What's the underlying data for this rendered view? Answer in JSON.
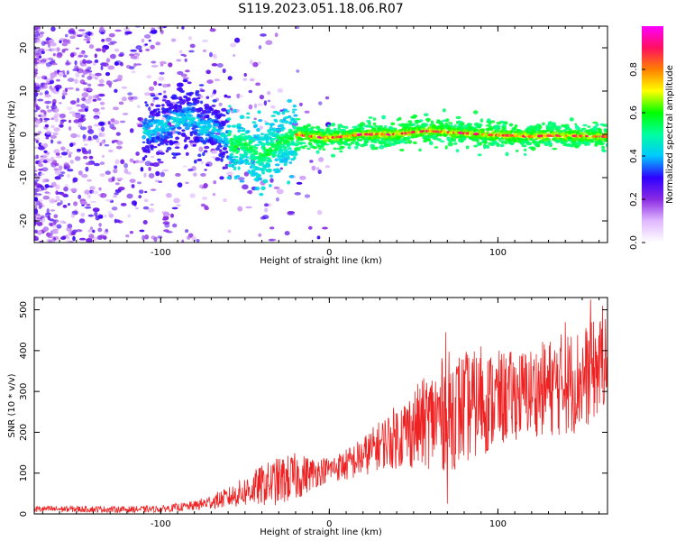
{
  "title": "S119.2023.051.18.06.R07",
  "chart_data": [
    {
      "type": "heatmap",
      "xlabel": "Height of straight line (km)",
      "ylabel": "Frequency (Hz)",
      "xlim": [
        -175,
        165
      ],
      "ylim": [
        -25,
        25
      ],
      "x_ticks": [
        -100,
        0,
        100
      ],
      "y_ticks": [
        -20,
        -10,
        0,
        10,
        20
      ],
      "colorbar": {
        "label": "Normalized spectral amplitude",
        "range": [
          0.0,
          1.0
        ],
        "ticks": [
          "0.0",
          "0.2",
          "0.4",
          "0.6",
          "0.8"
        ],
        "tick_values": [
          0.0,
          0.2,
          0.4,
          0.6,
          0.8
        ],
        "colors": [
          "#ffffff",
          "#e0b8ff",
          "#8a2be2",
          "#2f00ff",
          "#00c8ff",
          "#00ffa0",
          "#00ff00",
          "#ffff00",
          "#ff8000",
          "#ff1060",
          "#ff00ff"
        ]
      },
      "center_line": [
        [
          -110,
          0.5
        ],
        [
          -100,
          1.5
        ],
        [
          -90,
          3
        ],
        [
          -80,
          4
        ],
        [
          -75,
          1
        ],
        [
          -70,
          2
        ],
        [
          -65,
          0
        ],
        [
          -60,
          -1
        ],
        [
          -55,
          -3
        ],
        [
          -50,
          -2
        ],
        [
          -45,
          -4
        ],
        [
          -40,
          -5
        ],
        [
          -35,
          -4
        ],
        [
          -30,
          -2
        ],
        [
          -25,
          -1
        ],
        [
          -20,
          0
        ],
        [
          -10,
          -0.5
        ],
        [
          0,
          -0.8
        ],
        [
          10,
          -0.5
        ],
        [
          20,
          0
        ],
        [
          30,
          0
        ],
        [
          40,
          0
        ],
        [
          50,
          0.5
        ],
        [
          60,
          0.8
        ],
        [
          70,
          0.5
        ],
        [
          80,
          0.3
        ],
        [
          90,
          0
        ],
        [
          100,
          -0.2
        ],
        [
          110,
          -0.3
        ],
        [
          120,
          -0.5
        ],
        [
          130,
          -0.3
        ],
        [
          140,
          -0.3
        ],
        [
          150,
          -0.4
        ],
        [
          160,
          -0.5
        ]
      ],
      "grid": false,
      "legend": "colorbar-right"
    },
    {
      "type": "line",
      "xlabel": "Height of straight line (km)",
      "ylabel": "SNR (10 * v/v)",
      "xlim": [
        -175,
        165
      ],
      "ylim": [
        0,
        530
      ],
      "x_ticks": [
        -100,
        0,
        100
      ],
      "y_ticks": [
        0,
        100,
        200,
        300,
        400,
        500
      ],
      "color": "#ee2222",
      "envelope": {
        "x": [
          -175,
          -150,
          -120,
          -100,
          -80,
          -60,
          -40,
          -30,
          -20,
          -10,
          0,
          10,
          20,
          30,
          40,
          50,
          60,
          70,
          80,
          90,
          100,
          110,
          120,
          130,
          140,
          150,
          160,
          165
        ],
        "mean": [
          12,
          12,
          11,
          12,
          20,
          40,
          70,
          80,
          90,
          100,
          110,
          120,
          140,
          170,
          190,
          210,
          230,
          250,
          260,
          270,
          280,
          290,
          300,
          310,
          320,
          330,
          360,
          380
        ],
        "amp": [
          8,
          8,
          8,
          8,
          12,
          25,
          50,
          60,
          60,
          40,
          30,
          40,
          50,
          60,
          80,
          100,
          120,
          150,
          140,
          130,
          120,
          110,
          110,
          120,
          130,
          130,
          120,
          100
        ]
      },
      "peaks": [
        [
          69,
          445
        ],
        [
          90,
          410
        ],
        [
          140,
          470
        ],
        [
          155,
          525
        ],
        [
          162,
          510
        ],
        [
          70,
          25
        ]
      ],
      "grid": false,
      "legend": "none"
    }
  ]
}
